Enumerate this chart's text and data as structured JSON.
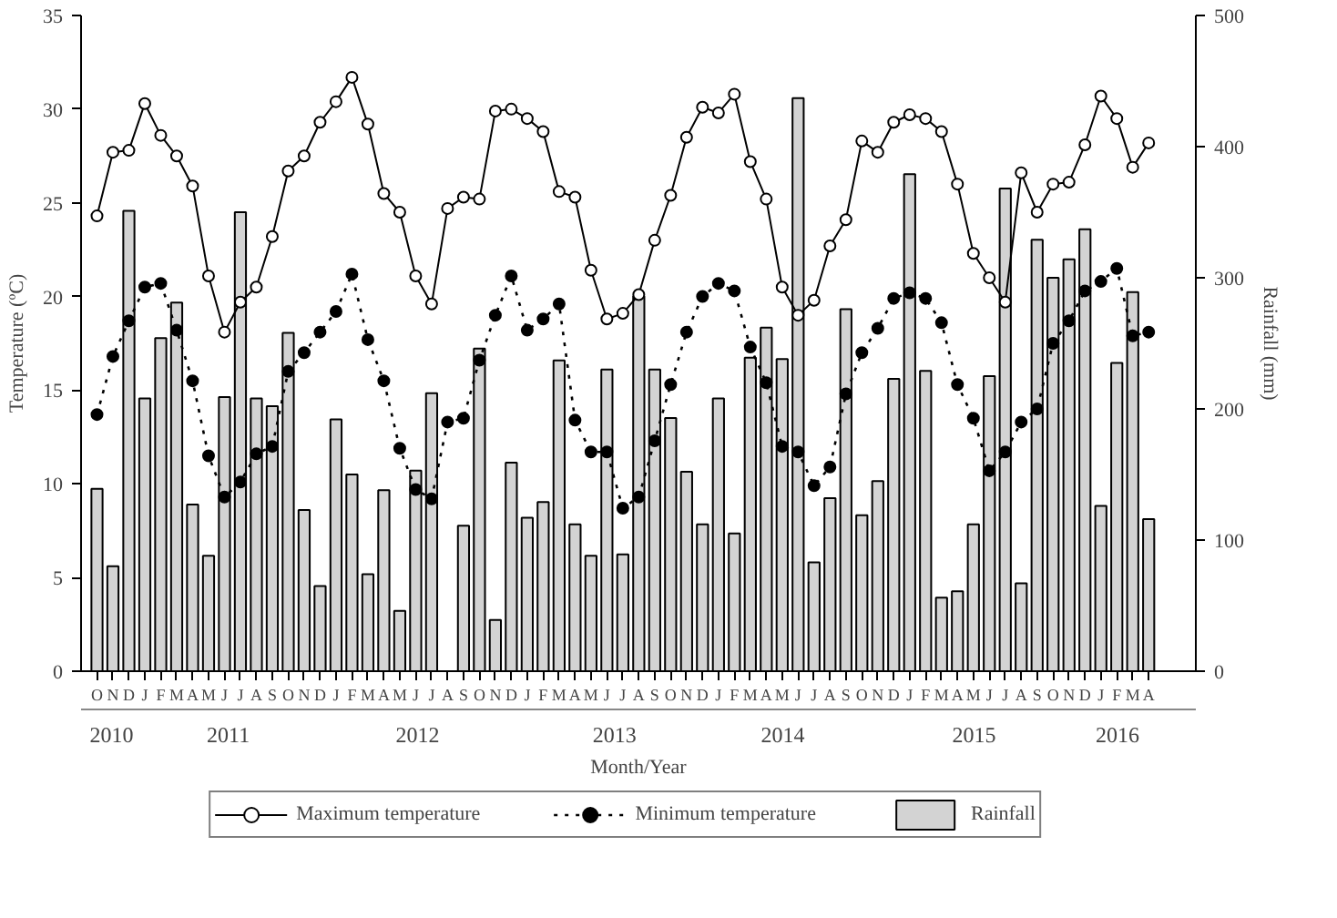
{
  "chart_data": {
    "type": "line",
    "xlabel": "Month/Year",
    "ylabel": "Temperature (ºC)",
    "y2label": "Rainfall (mm)",
    "categories": [
      "O",
      "N",
      "D",
      "J",
      "F",
      "M",
      "A",
      "M",
      "J",
      "J",
      "A",
      "S",
      "O",
      "N",
      "D",
      "J",
      "F",
      "M",
      "A",
      "M",
      "J",
      "J",
      "A",
      "S",
      "O",
      "N",
      "D",
      "J",
      "F",
      "M",
      "A",
      "M",
      "J",
      "J",
      "A",
      "S",
      "O",
      "N",
      "D",
      "J",
      "F",
      "M",
      "A",
      "M",
      "J",
      "J",
      "A",
      "S",
      "O",
      "N",
      "D",
      "J",
      "F",
      "M",
      "A",
      "M",
      "J",
      "J",
      "A",
      "S",
      "O",
      "N",
      "D",
      "J",
      "F",
      "M",
      "A"
    ],
    "x2lim": [
      2010.21,
      2016.04
    ],
    "x2ticks": [
      {
        "value": 2010.37,
        "label": "2010"
      },
      {
        "value": 2010.98,
        "label": "2011"
      },
      {
        "value": 2011.97,
        "label": "2012"
      },
      {
        "value": 2013.0,
        "label": "2013"
      },
      {
        "value": 2013.88,
        "label": "2014"
      },
      {
        "value": 2014.88,
        "label": "2015"
      },
      {
        "value": 2015.63,
        "label": "2016"
      }
    ],
    "ylim": [
      0,
      35
    ],
    "yticks": [
      0,
      5,
      10,
      15,
      20,
      25,
      30,
      35
    ],
    "y2lim": [
      0,
      500
    ],
    "y2ticks": [
      0,
      100,
      200,
      300,
      400,
      500
    ],
    "grid": false,
    "legend": "bottom",
    "series": [
      {
        "name": "Rainfall",
        "type": "bar",
        "axis": "y2",
        "color": "#d3d3d3",
        "values": [
          139,
          80,
          351,
          208,
          254,
          281,
          127,
          88,
          209,
          350,
          208,
          202,
          258,
          123,
          65,
          192,
          150,
          74,
          138,
          46,
          153,
          212,
          null,
          111,
          246,
          39,
          159,
          117,
          129,
          237,
          112,
          88,
          230,
          89,
          286,
          230,
          193,
          152,
          112,
          208,
          105,
          239,
          262,
          238,
          437,
          83,
          132,
          276,
          119,
          145,
          223,
          379,
          229,
          56,
          61,
          112,
          225,
          368,
          67,
          329,
          300,
          314,
          337,
          126,
          235,
          289,
          116
        ]
      },
      {
        "name": "Maximum temperature",
        "color": "#000000",
        "marker": "circle",
        "line_style": "solid",
        "values": [
          24.3,
          27.7,
          27.8,
          30.3,
          28.6,
          27.5,
          25.9,
          21.1,
          18.1,
          19.7,
          20.5,
          23.2,
          26.7,
          27.5,
          29.3,
          30.4,
          31.7,
          29.2,
          25.5,
          24.5,
          21.1,
          19.6,
          24.7,
          25.3,
          25.2,
          29.9,
          30.0,
          29.5,
          28.8,
          25.6,
          25.3,
          21.4,
          18.8,
          19.1,
          20.1,
          23.0,
          25.4,
          28.5,
          30.1,
          29.8,
          30.8,
          27.2,
          25.2,
          20.5,
          19.0,
          19.8,
          22.7,
          24.1,
          28.3,
          27.7,
          29.3,
          29.7,
          29.5,
          28.8,
          26.0,
          22.3,
          21.0,
          19.7,
          26.6,
          24.5,
          26.0,
          26.1,
          28.1,
          30.7,
          29.5,
          26.9,
          28.2
        ]
      },
      {
        "name": "Minimum temperature",
        "color": "#000000",
        "marker": "circle",
        "line_style": "dotted",
        "values": [
          13.7,
          16.8,
          18.7,
          20.5,
          20.7,
          18.2,
          15.5,
          11.5,
          9.3,
          10.1,
          11.6,
          12.0,
          16.0,
          17.0,
          18.1,
          19.2,
          21.2,
          17.7,
          15.5,
          11.9,
          9.7,
          9.2,
          13.3,
          13.5,
          16.6,
          19.0,
          21.1,
          18.2,
          18.8,
          19.6,
          13.4,
          11.7,
          11.7,
          8.7,
          9.3,
          12.3,
          15.3,
          18.1,
          20.0,
          20.7,
          20.3,
          17.3,
          15.4,
          12.0,
          11.7,
          9.9,
          10.9,
          14.8,
          17.0,
          18.3,
          19.9,
          20.2,
          19.9,
          18.6,
          15.3,
          13.5,
          10.7,
          11.7,
          13.3,
          14.0,
          17.5,
          18.7,
          20.3,
          20.8,
          21.5,
          17.9,
          18.1
        ]
      }
    ]
  }
}
